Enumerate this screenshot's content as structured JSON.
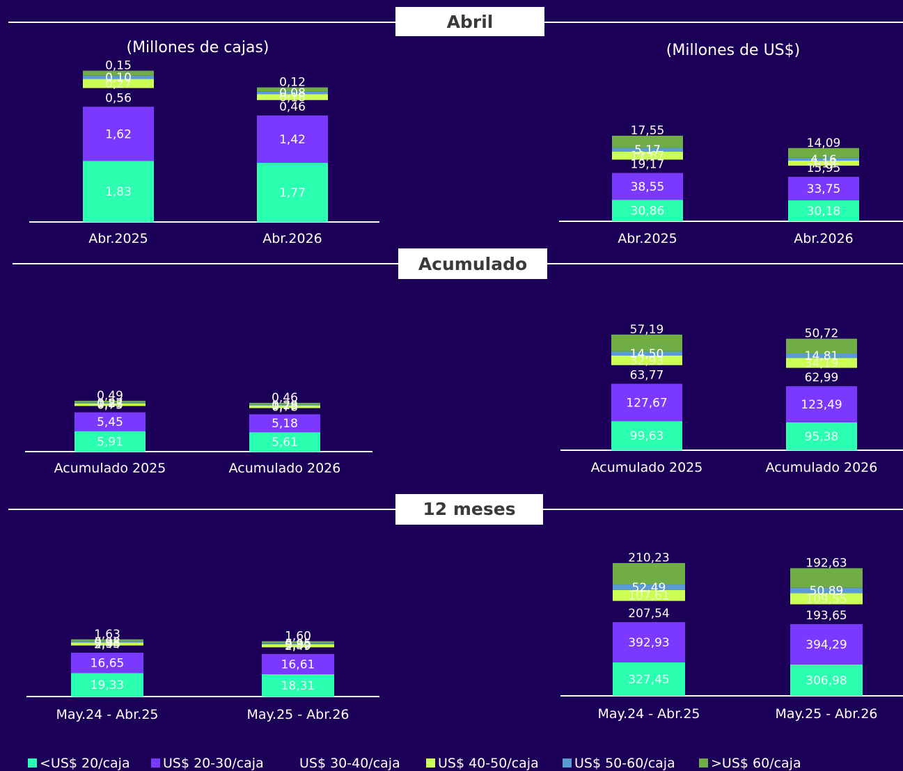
{
  "sections": [
    {
      "title": "Abril"
    },
    {
      "title": "Acumulado"
    },
    {
      "title": "12 meses"
    }
  ],
  "units": {
    "left": "(Millones de cajas)",
    "right": "(Millones de US$)"
  },
  "legend": [
    {
      "label": "<US$ 20/caja",
      "color": "#2bffb0",
      "swatch": true
    },
    {
      "label": "US$ 20-30/caja",
      "color": "#7b39ff",
      "swatch": true
    },
    {
      "label": "US$ 30-40/caja",
      "color": "#1c0057",
      "swatch": false
    },
    {
      "label": "US$ 40-50/caja",
      "color": "#ccff55",
      "swatch": true
    },
    {
      "label": "US$ 50-60/caja",
      "color": "#5b9bd5",
      "swatch": true
    },
    {
      "label": ">US$ 60/caja",
      "color": "#70ad47",
      "swatch": true
    }
  ],
  "chart_data": [
    {
      "type": "bar",
      "stacked": true,
      "section": "Abril",
      "unit": "(Millones de cajas)",
      "categories": [
        "Abr.2025",
        "Abr.2026"
      ],
      "series": [
        {
          "name": "<US$ 20/caja",
          "values": [
            1.83,
            1.77
          ],
          "labels": [
            "1,83",
            "1,77"
          ]
        },
        {
          "name": "US$ 20-30/caja",
          "values": [
            1.62,
            1.42
          ],
          "labels": [
            "1,62",
            "1,42"
          ]
        },
        {
          "name": "US$ 30-40/caja",
          "values": [
            0.56,
            0.46
          ],
          "labels": [
            "0,56",
            "0,46"
          ]
        },
        {
          "name": "US$ 40-50/caja",
          "values": [
            0.27,
            0.18
          ],
          "labels": [
            "0,27",
            "0,18"
          ]
        },
        {
          "name": "US$ 50-60/caja",
          "values": [
            0.1,
            0.08
          ],
          "labels": [
            "0,10",
            "0,08"
          ]
        },
        {
          "name": ">US$ 60/caja",
          "values": [
            0.15,
            0.12
          ],
          "labels": [
            "0,15",
            "0,12"
          ]
        }
      ]
    },
    {
      "type": "bar",
      "stacked": true,
      "section": "Abril",
      "unit": "(Millones de US$)",
      "categories": [
        "Abr.2025",
        "Abr.2026"
      ],
      "series": [
        {
          "name": "<US$ 20/caja",
          "values": [
            30.86,
            30.18
          ],
          "labels": [
            "30,86",
            "30,18"
          ]
        },
        {
          "name": "US$ 20-30/caja",
          "values": [
            38.55,
            33.75
          ],
          "labels": [
            "38,55",
            "33,75"
          ]
        },
        {
          "name": "US$ 30-40/caja",
          "values": [
            19.17,
            15.95
          ],
          "labels": [
            "19,17",
            "15,95"
          ]
        },
        {
          "name": "US$ 40-50/caja",
          "values": [
            11.67,
            7.12
          ],
          "labels": [
            "11,67",
            "7,12"
          ]
        },
        {
          "name": "US$ 50-60/caja",
          "values": [
            5.17,
            4.16
          ],
          "labels": [
            "5,17",
            "4,16"
          ]
        },
        {
          "name": ">US$ 60/caja",
          "values": [
            17.55,
            14.09
          ],
          "labels": [
            "17,55",
            "14,09"
          ]
        }
      ]
    },
    {
      "type": "bar",
      "stacked": true,
      "section": "Acumulado",
      "unit": "(Millones de cajas)",
      "categories": [
        "Acumulado 2025",
        "Acumulado 2026"
      ],
      "series": [
        {
          "name": "<US$ 20/caja",
          "values": [
            5.91,
            5.61
          ],
          "labels": [
            "5,91",
            "5,61"
          ]
        },
        {
          "name": "US$ 20-30/caja",
          "values": [
            5.45,
            5.18
          ],
          "labels": [
            "5,45",
            "5,18"
          ]
        },
        {
          "name": "US$ 30-40/caja",
          "values": [
            1.83,
            1.79
          ],
          "labels": [
            "1,83",
            "1,79"
          ]
        },
        {
          "name": "US$ 40-50/caja",
          "values": [
            0.75,
            0.78
          ],
          "labels": [
            "0,75",
            "0,78"
          ]
        },
        {
          "name": "US$ 50-60/caja",
          "values": [
            0.27,
            0.28
          ],
          "labels": [
            "0,27",
            "0,28"
          ]
        },
        {
          "name": ">US$ 60/caja",
          "values": [
            0.49,
            0.46
          ],
          "labels": [
            "0,49",
            "0,46"
          ]
        }
      ]
    },
    {
      "type": "bar",
      "stacked": true,
      "section": "Acumulado",
      "unit": "(Millones de US$)",
      "categories": [
        "Acumulado 2025",
        "Acumulado 2026"
      ],
      "series": [
        {
          "name": "<US$ 20/caja",
          "values": [
            99.63,
            95.38
          ],
          "labels": [
            "99,63",
            "95,38"
          ]
        },
        {
          "name": "US$ 20-30/caja",
          "values": [
            127.67,
            123.49
          ],
          "labels": [
            "127,67",
            "123,49"
          ]
        },
        {
          "name": "US$ 30-40/caja",
          "values": [
            63.77,
            62.99
          ],
          "labels": [
            "63,77",
            "62,99"
          ]
        },
        {
          "name": "US$ 40-50/caja",
          "values": [
            32.93,
            34.19
          ],
          "labels": [
            "32,93",
            "34,19"
          ]
        },
        {
          "name": "US$ 50-60/caja",
          "values": [
            14.5,
            14.81
          ],
          "labels": [
            "14,50",
            "14,81"
          ]
        },
        {
          "name": ">US$ 60/caja",
          "values": [
            57.19,
            50.72
          ],
          "labels": [
            "57,19",
            "50,72"
          ]
        }
      ]
    },
    {
      "type": "bar",
      "stacked": true,
      "section": "12 meses",
      "unit": "(Millones de cajas)",
      "categories": [
        "May.24 - Abr.25",
        "May.25 - Abr.26"
      ],
      "series": [
        {
          "name": "<US$ 20/caja",
          "values": [
            19.33,
            18.31
          ],
          "labels": [
            "19,33",
            "18,31"
          ]
        },
        {
          "name": "US$ 20-30/caja",
          "values": [
            16.65,
            16.61
          ],
          "labels": [
            "16,65",
            "16,61"
          ]
        },
        {
          "name": "US$ 30-40/caja",
          "values": [
            5.95,
            5.5
          ],
          "labels": [
            "5,95",
            "5,50"
          ]
        },
        {
          "name": "US$ 40-50/caja",
          "values": [
            2.44,
            2.49
          ],
          "labels": [
            "2,44",
            "2,49"
          ]
        },
        {
          "name": "US$ 50-60/caja",
          "values": [
            0.98,
            0.95
          ],
          "labels": [
            "0,98",
            "0,95"
          ]
        },
        {
          "name": ">US$ 60/caja",
          "values": [
            1.63,
            1.6
          ],
          "labels": [
            "1,63",
            "1,60"
          ]
        }
      ]
    },
    {
      "type": "bar",
      "stacked": true,
      "section": "12 meses",
      "unit": "(Millones de US$)",
      "categories": [
        "May.24 - Abr.25",
        "May.25 - Abr.26"
      ],
      "series": [
        {
          "name": "<US$ 20/caja",
          "values": [
            327.45,
            306.98
          ],
          "labels": [
            "327,45",
            "306,98"
          ]
        },
        {
          "name": "US$ 20-30/caja",
          "values": [
            392.93,
            394.29
          ],
          "labels": [
            "392,93",
            "394,29"
          ]
        },
        {
          "name": "US$ 30-40/caja",
          "values": [
            207.54,
            193.65
          ],
          "labels": [
            "207,54",
            "193,65"
          ]
        },
        {
          "name": "US$ 40-50/caja",
          "values": [
            107.61,
            109.55
          ],
          "labels": [
            "107,61",
            "109,55"
          ]
        },
        {
          "name": "US$ 50-60/caja",
          "values": [
            52.49,
            50.89
          ],
          "labels": [
            "52,49",
            "50,89"
          ]
        },
        {
          "name": ">US$ 60/caja",
          "values": [
            210.23,
            192.63
          ],
          "labels": [
            "210,23",
            "192,63"
          ]
        }
      ]
    }
  ]
}
